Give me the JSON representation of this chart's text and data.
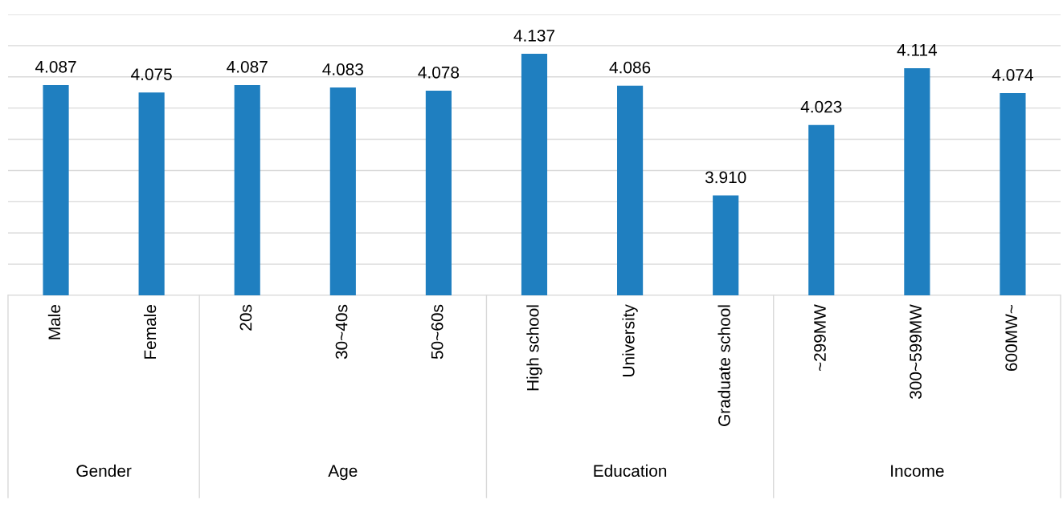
{
  "chart_data": {
    "type": "bar",
    "categories": [
      "Male",
      "Female",
      "20s",
      "30~40s",
      "50~60s",
      "High school",
      "University",
      "Graduate school",
      "~299MW",
      "300~599MW",
      "600MW~"
    ],
    "values": [
      4.087,
      4.075,
      4.087,
      4.083,
      4.078,
      4.137,
      4.086,
      3.91,
      4.023,
      4.114,
      4.074
    ],
    "color": "#1f7fc0",
    "ylim": [
      3.75,
      4.2
    ],
    "yticks": [
      {
        "value": 3.75,
        "label": null
      },
      {
        "value": 3.8,
        "label": null
      },
      {
        "value": 3.85,
        "label": null
      },
      {
        "value": 3.9,
        "label": null
      },
      {
        "value": 3.95,
        "label": null
      },
      {
        "value": 4.0,
        "label": null
      },
      {
        "value": 4.05,
        "label": null
      },
      {
        "value": 4.1,
        "label": null
      },
      {
        "value": 4.15,
        "label": null
      },
      {
        "value": 4.2,
        "label": null
      }
    ],
    "grid": "y",
    "tick_labels": "x",
    "value_labels": [
      "4.087",
      "4.075",
      "4.087",
      "4.083",
      "4.078",
      "4.137",
      "4.086",
      "3.910",
      "4.023",
      "4.114",
      "4.074"
    ],
    "annotations": [
      "Gender",
      "Age",
      "Education",
      "Income"
    ]
  }
}
